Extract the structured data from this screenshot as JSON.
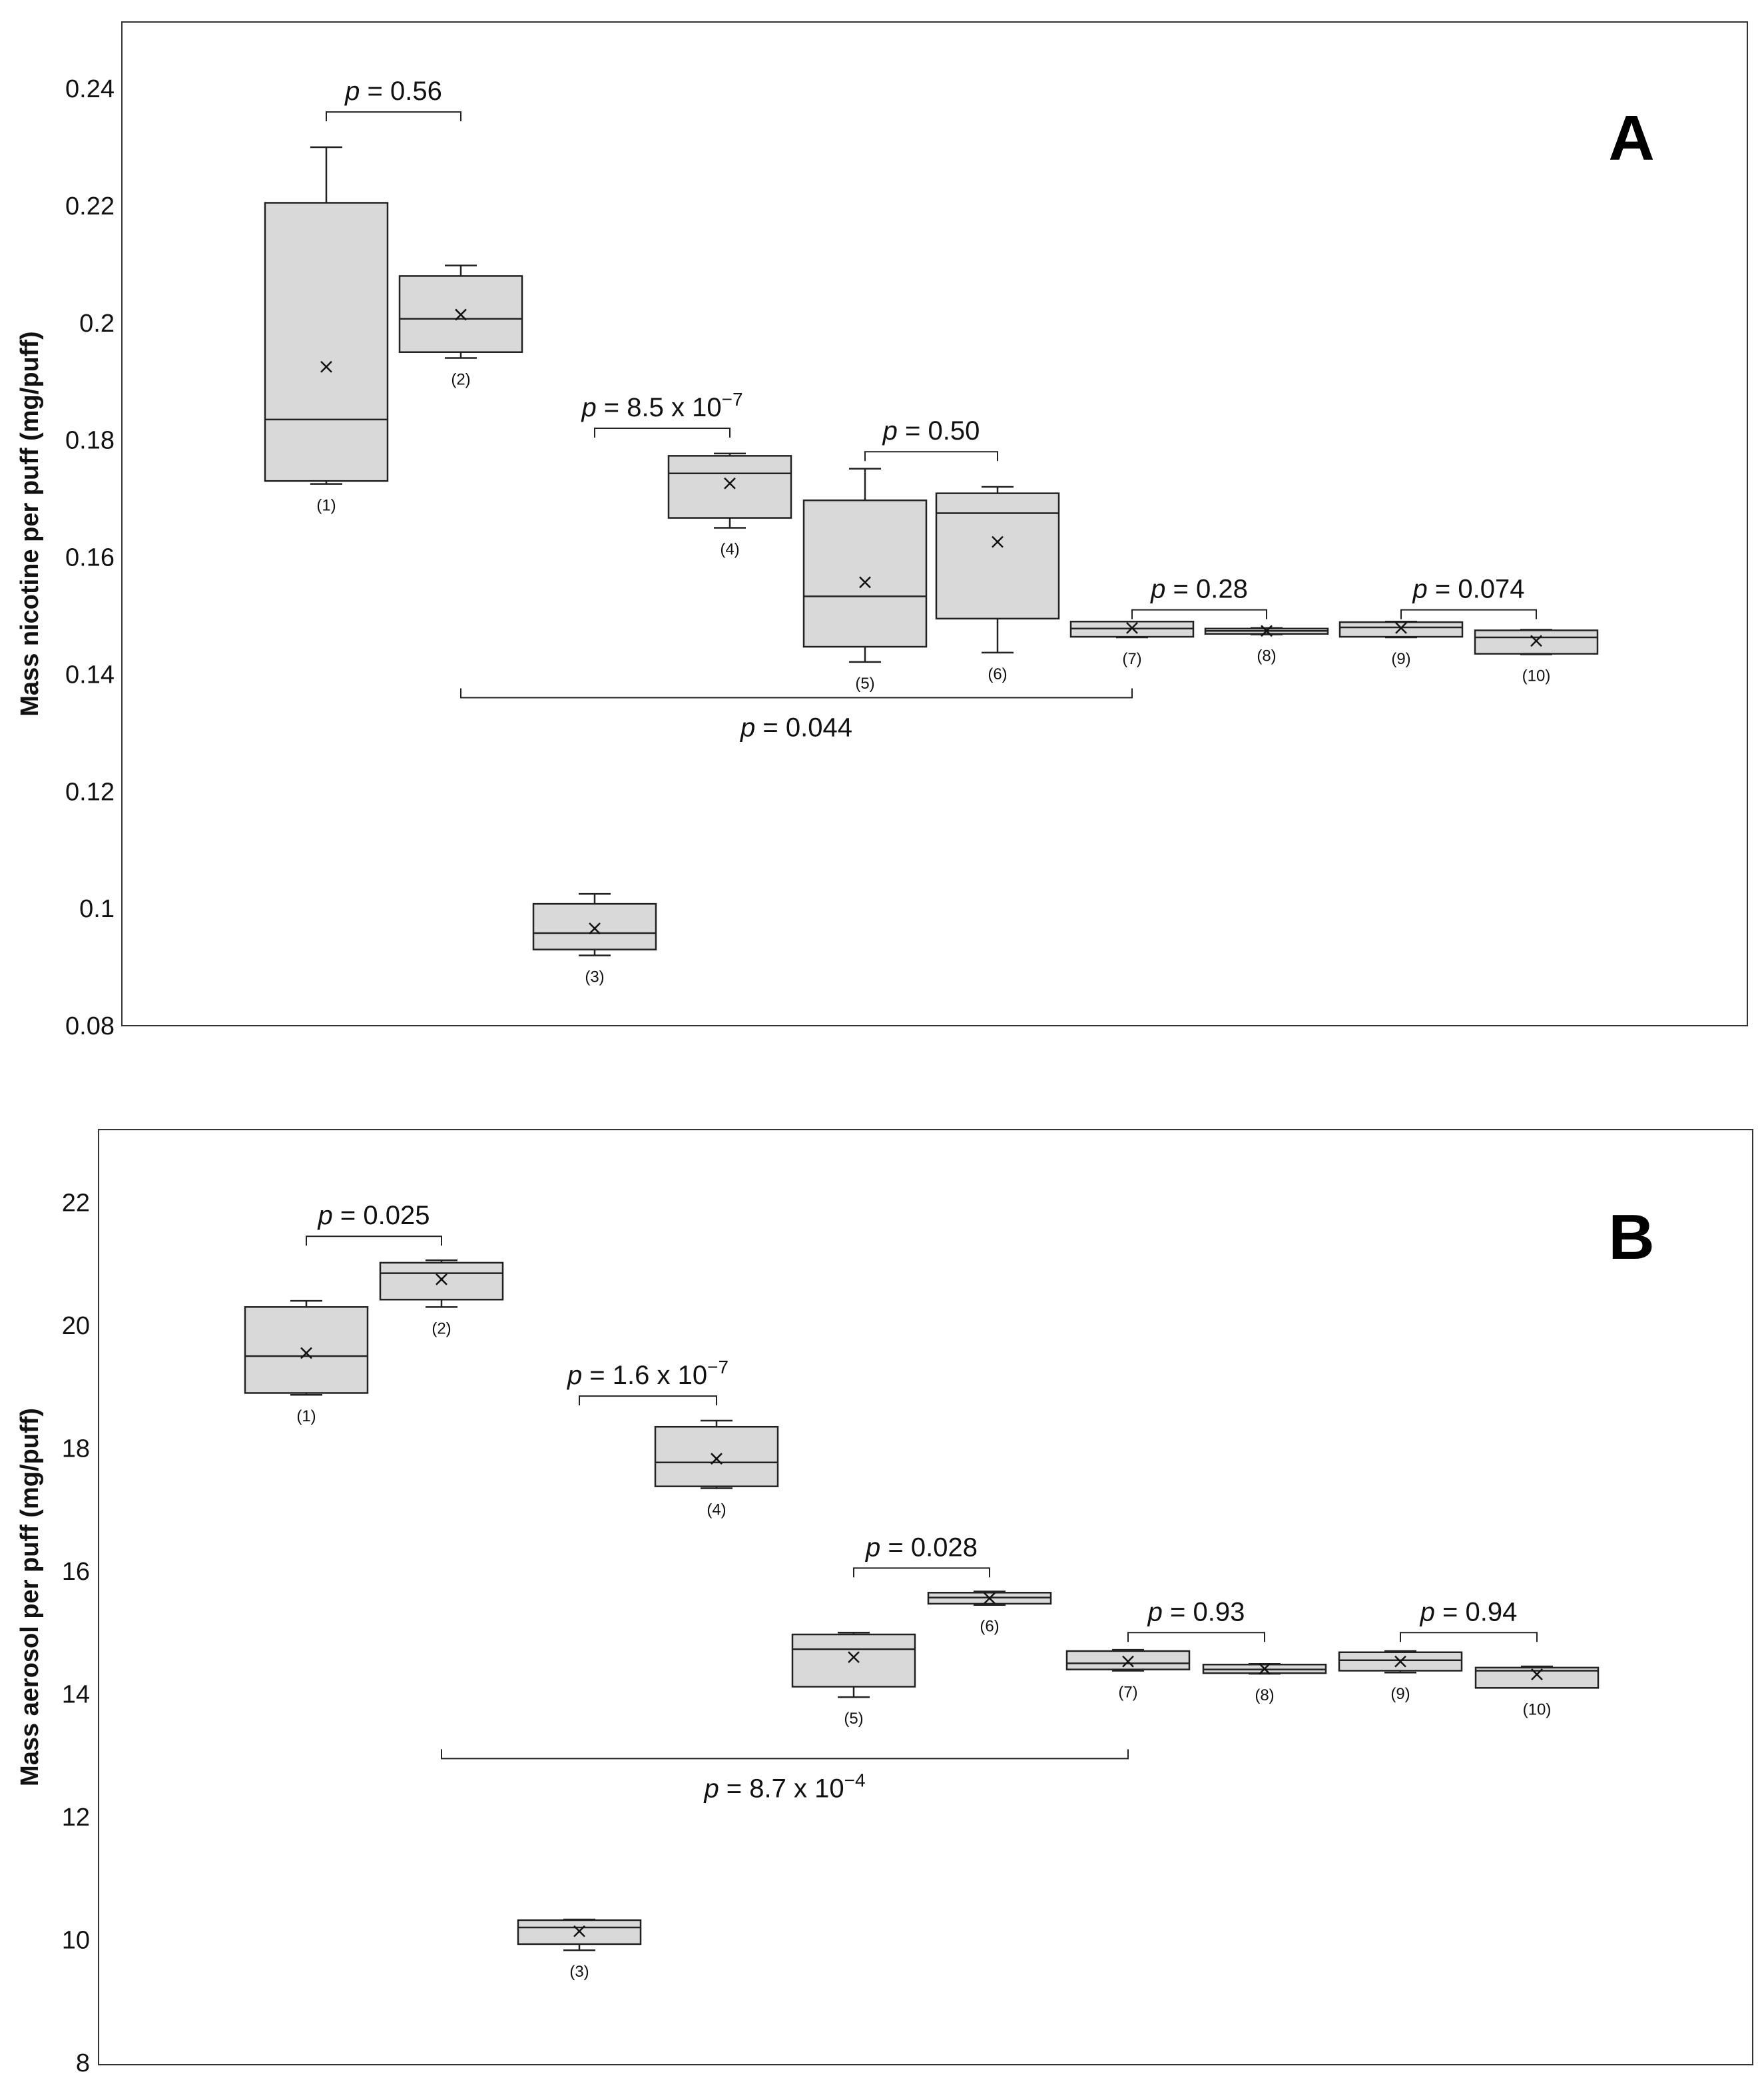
{
  "chart_data": [
    {
      "type": "box",
      "panel": "A",
      "title": "",
      "xlabel": "",
      "ylabel": "Mass nicotine per puff (mg/puff)",
      "ylim": [
        0.08,
        0.25
      ],
      "yticks": [
        "0.08",
        "0.1",
        "0.12",
        "0.14",
        "0.16",
        "0.18",
        "0.2",
        "0.22",
        "0.24"
      ],
      "ytick_values": [
        0.08,
        0.1,
        0.12,
        0.14,
        0.16,
        0.18,
        0.2,
        0.22,
        0.24
      ],
      "grid": false,
      "boxes": [
        {
          "label": "(1)",
          "min": 0.1725,
          "q1": 0.173,
          "median": 0.1835,
          "q3": 0.2205,
          "max": 0.23,
          "mean": 0.1925
        },
        {
          "label": "(2)",
          "min": 0.194,
          "q1": 0.195,
          "median": 0.2007,
          "q3": 0.208,
          "max": 0.2098,
          "mean": 0.2014
        },
        {
          "label": "(3)",
          "min": 0.092,
          "q1": 0.093,
          "median": 0.0958,
          "q3": 0.1008,
          "max": 0.1025,
          "mean": 0.0966
        },
        {
          "label": "(4)",
          "min": 0.165,
          "q1": 0.1667,
          "median": 0.1743,
          "q3": 0.1773,
          "max": 0.1777,
          "mean": 0.1726
        },
        {
          "label": "(5)",
          "min": 0.1421,
          "q1": 0.1447,
          "median": 0.1533,
          "q3": 0.1697,
          "max": 0.1751,
          "mean": 0.1557
        },
        {
          "label": "(6)",
          "min": 0.1437,
          "q1": 0.1495,
          "median": 0.1675,
          "q3": 0.1709,
          "max": 0.172,
          "mean": 0.1626
        },
        {
          "label": "(7)",
          "min": 0.1463,
          "q1": 0.1464,
          "median": 0.1478,
          "q3": 0.149,
          "max": 0.149,
          "mean": 0.1479
        },
        {
          "label": "(8)",
          "min": 0.1468,
          "q1": 0.1469,
          "median": 0.1474,
          "q3": 0.1478,
          "max": 0.1479,
          "mean": 0.1474
        },
        {
          "label": "(9)",
          "min": 0.1463,
          "q1": 0.1464,
          "median": 0.148,
          "q3": 0.1489,
          "max": 0.149,
          "mean": 0.1479
        },
        {
          "label": "(10)",
          "min": 0.1434,
          "q1": 0.1435,
          "median": 0.1463,
          "q3": 0.1475,
          "max": 0.1476,
          "mean": 0.1457
        }
      ],
      "comparisons": [
        {
          "from": 1,
          "to": 2,
          "level": 0.236,
          "p": "0.56"
        },
        {
          "from": 3,
          "to": 4,
          "level": 0.182,
          "p_base": "8.5 x 10",
          "p_exp": "−7"
        },
        {
          "from": 5,
          "to": 6,
          "level": 0.178,
          "p": "0.50"
        },
        {
          "from": 7,
          "to": 8,
          "level": 0.151,
          "p": "0.28"
        },
        {
          "from": 9,
          "to": 10,
          "level": 0.151,
          "p": "0.074"
        },
        {
          "from": 2,
          "to": 7,
          "level": 0.136,
          "below": true,
          "p": "0.044"
        }
      ]
    },
    {
      "type": "box",
      "panel": "B",
      "title": "",
      "xlabel": "",
      "ylabel": "Mass aerosol per puff (mg/puff)",
      "ylim": [
        8,
        23.2
      ],
      "yticks": [
        "8",
        "10",
        "12",
        "14",
        "16",
        "18",
        "20",
        "22"
      ],
      "ytick_values": [
        8,
        10,
        12,
        14,
        16,
        18,
        20,
        22
      ],
      "grid": false,
      "boxes": [
        {
          "label": "(1)",
          "min": 18.87,
          "q1": 18.9,
          "median": 19.5,
          "q3": 20.3,
          "max": 20.4,
          "mean": 19.55
        },
        {
          "label": "(2)",
          "min": 20.3,
          "q1": 20.42,
          "median": 20.85,
          "q3": 21.02,
          "max": 21.06,
          "mean": 20.75
        },
        {
          "label": "(3)",
          "min": 9.83,
          "q1": 9.93,
          "median": 10.2,
          "q3": 10.32,
          "max": 10.33,
          "mean": 10.14
        },
        {
          "label": "(4)",
          "min": 17.35,
          "q1": 17.38,
          "median": 17.77,
          "q3": 18.35,
          "max": 18.45,
          "mean": 17.83
        },
        {
          "label": "(5)",
          "min": 13.95,
          "q1": 14.12,
          "median": 14.73,
          "q3": 14.97,
          "max": 15.0,
          "mean": 14.6
        },
        {
          "label": "(6)",
          "min": 15.45,
          "q1": 15.47,
          "median": 15.57,
          "q3": 15.65,
          "max": 15.67,
          "mean": 15.56
        },
        {
          "label": "(7)",
          "min": 14.38,
          "q1": 14.4,
          "median": 14.5,
          "q3": 14.7,
          "max": 14.72,
          "mean": 14.53
        },
        {
          "label": "(8)",
          "min": 14.33,
          "q1": 14.34,
          "median": 14.4,
          "q3": 14.48,
          "max": 14.49,
          "mean": 14.41
        },
        {
          "label": "(9)",
          "min": 14.35,
          "q1": 14.38,
          "median": 14.55,
          "q3": 14.68,
          "max": 14.7,
          "mean": 14.53
        },
        {
          "label": "(10)",
          "min": 14.1,
          "q1": 14.1,
          "median": 14.38,
          "q3": 14.43,
          "max": 14.45,
          "mean": 14.32
        }
      ],
      "comparisons": [
        {
          "from": 1,
          "to": 2,
          "level": 21.45,
          "p": "0.025"
        },
        {
          "from": 3,
          "to": 4,
          "level": 18.85,
          "p_base": "1.6 x 10",
          "p_exp": "−7"
        },
        {
          "from": 5,
          "to": 6,
          "level": 16.05,
          "p": "0.028"
        },
        {
          "from": 7,
          "to": 8,
          "level": 15.0,
          "p": "0.93"
        },
        {
          "from": 9,
          "to": 10,
          "level": 15.0,
          "p": "0.94"
        },
        {
          "from": 2,
          "to": 7,
          "level": 12.95,
          "below": true,
          "p_base": "8.7 x 10",
          "p_exp": "−4"
        }
      ]
    }
  ]
}
